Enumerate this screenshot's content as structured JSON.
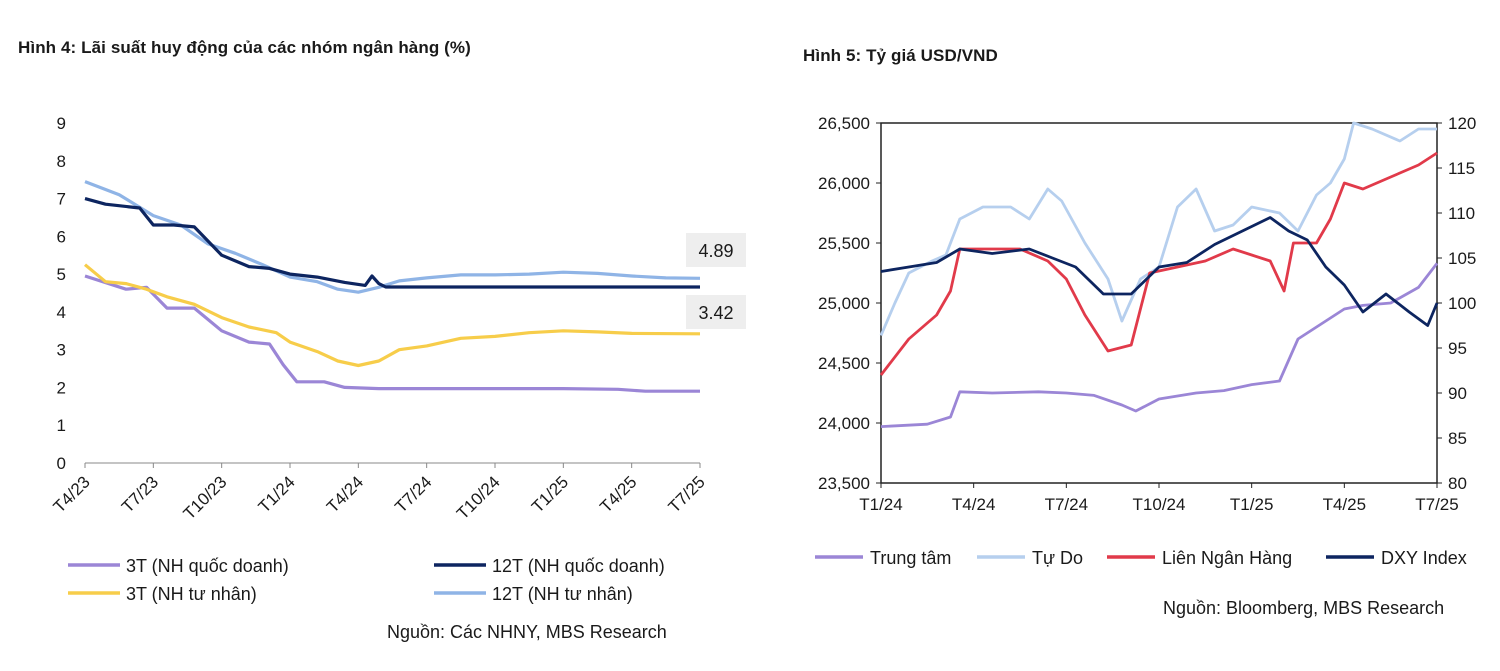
{
  "chart_data": [
    {
      "type": "line",
      "title": "Hình 4: Lãi suất huy động của các nhóm ngân hàng (%)",
      "source": "Nguồn: Các NHNY, MBS Research",
      "xlabel": "",
      "ylabel": "",
      "ylim": [
        0,
        9
      ],
      "yticks": [
        "0",
        "1",
        "2",
        "3",
        "4",
        "5",
        "6",
        "7",
        "8",
        "9"
      ],
      "categories": [
        "T4/23",
        "T7/23",
        "T10/23",
        "T1/24",
        "T4/24",
        "T7/24",
        "T10/24",
        "T1/25",
        "T4/25",
        "T7/25"
      ],
      "end_labels": [
        "4.89",
        "3.42"
      ],
      "series": [
        {
          "name": "3T (NH quốc doanh)",
          "color": "#9b86d6",
          "points": [
            [
              0,
              4.95
            ],
            [
              0.6,
              4.6
            ],
            [
              0.9,
              4.65
            ],
            [
              1.2,
              4.1
            ],
            [
              1.6,
              4.1
            ],
            [
              2.0,
              3.5
            ],
            [
              2.4,
              3.2
            ],
            [
              2.7,
              3.15
            ],
            [
              2.9,
              2.6
            ],
            [
              3.1,
              2.15
            ],
            [
              3.5,
              2.15
            ],
            [
              3.8,
              2.0
            ],
            [
              4.3,
              1.97
            ],
            [
              5.0,
              1.97
            ],
            [
              6,
              1.97
            ],
            [
              7,
              1.97
            ],
            [
              7.8,
              1.95
            ],
            [
              8.2,
              1.9
            ],
            [
              9,
              1.9
            ]
          ]
        },
        {
          "name": "12T (NH quốc doanh)",
          "color": "#0d2560",
          "points": [
            [
              0,
              7.0
            ],
            [
              0.3,
              6.85
            ],
            [
              0.8,
              6.75
            ],
            [
              1.0,
              6.3
            ],
            [
              1.3,
              6.3
            ],
            [
              1.6,
              6.25
            ],
            [
              2.0,
              5.5
            ],
            [
              2.4,
              5.2
            ],
            [
              2.7,
              5.15
            ],
            [
              3.0,
              5.0
            ],
            [
              3.4,
              4.92
            ],
            [
              3.8,
              4.78
            ],
            [
              4.1,
              4.7
            ],
            [
              4.2,
              4.95
            ],
            [
              4.3,
              4.75
            ],
            [
              4.4,
              4.66
            ],
            [
              5.0,
              4.66
            ],
            [
              6,
              4.66
            ],
            [
              7,
              4.66
            ],
            [
              8,
              4.66
            ],
            [
              9,
              4.66
            ]
          ]
        },
        {
          "name": "3T (NH tư nhân)",
          "color": "#f7cd4a",
          "points": [
            [
              0,
              5.25
            ],
            [
              0.3,
              4.8
            ],
            [
              0.6,
              4.75
            ],
            [
              0.9,
              4.6
            ],
            [
              1.2,
              4.4
            ],
            [
              1.6,
              4.2
            ],
            [
              2.0,
              3.85
            ],
            [
              2.4,
              3.6
            ],
            [
              2.8,
              3.45
            ],
            [
              3.0,
              3.2
            ],
            [
              3.4,
              2.95
            ],
            [
              3.7,
              2.7
            ],
            [
              4.0,
              2.58
            ],
            [
              4.3,
              2.7
            ],
            [
              4.6,
              3.0
            ],
            [
              5.0,
              3.1
            ],
            [
              5.5,
              3.3
            ],
            [
              6.0,
              3.35
            ],
            [
              6.5,
              3.45
            ],
            [
              7.0,
              3.5
            ],
            [
              7.5,
              3.47
            ],
            [
              8.0,
              3.43
            ],
            [
              9,
              3.42
            ]
          ]
        },
        {
          "name": "12T (NH tư nhân)",
          "color": "#8fb4e6",
          "points": [
            [
              0,
              7.45
            ],
            [
              0.5,
              7.1
            ],
            [
              1.0,
              6.55
            ],
            [
              1.4,
              6.3
            ],
            [
              1.8,
              5.8
            ],
            [
              2.2,
              5.55
            ],
            [
              2.6,
              5.25
            ],
            [
              3.0,
              4.92
            ],
            [
              3.4,
              4.8
            ],
            [
              3.7,
              4.6
            ],
            [
              4.0,
              4.52
            ],
            [
              4.3,
              4.65
            ],
            [
              4.6,
              4.82
            ],
            [
              5.0,
              4.9
            ],
            [
              5.5,
              4.98
            ],
            [
              6.0,
              4.98
            ],
            [
              6.5,
              5.0
            ],
            [
              7.0,
              5.05
            ],
            [
              7.5,
              5.02
            ],
            [
              8.0,
              4.95
            ],
            [
              8.5,
              4.9
            ],
            [
              9,
              4.89
            ]
          ]
        }
      ]
    },
    {
      "type": "line",
      "title": "Hình 5: Tỷ giá USD/VND",
      "source": "Nguồn: Bloomberg, MBS Research",
      "xlabel": "",
      "ylabel": "",
      "ylim": [
        23500,
        26500
      ],
      "yticks": [
        "23,500",
        "24,000",
        "24,500",
        "25,000",
        "25,500",
        "26,000",
        "26,500"
      ],
      "y2lim": [
        80,
        120
      ],
      "y2ticks": [
        "80",
        "85",
        "90",
        "95",
        "100",
        "105",
        "110",
        "115",
        "120"
      ],
      "categories": [
        "T1/24",
        "T4/24",
        "T7/24",
        "T10/24",
        "T1/25",
        "T4/25",
        "T7/25"
      ],
      "series": [
        {
          "name": "Trung tâm",
          "color": "#9b86d6",
          "axis": "left",
          "points": [
            [
              0,
              23970
            ],
            [
              0.5,
              23990
            ],
            [
              0.75,
              24050
            ],
            [
              0.85,
              24260
            ],
            [
              1.2,
              24250
            ],
            [
              1.7,
              24260
            ],
            [
              2.0,
              24250
            ],
            [
              2.3,
              24230
            ],
            [
              2.6,
              24150
            ],
            [
              2.75,
              24100
            ],
            [
              3.0,
              24200
            ],
            [
              3.4,
              24250
            ],
            [
              3.7,
              24270
            ],
            [
              4.0,
              24320
            ],
            [
              4.3,
              24350
            ],
            [
              4.5,
              24700
            ],
            [
              4.8,
              24850
            ],
            [
              5.0,
              24950
            ],
            [
              5.2,
              24980
            ],
            [
              5.5,
              25000
            ],
            [
              5.8,
              25130
            ],
            [
              6.0,
              25330
            ]
          ]
        },
        {
          "name": "Tự Do",
          "color": "#b6cfee",
          "axis": "left",
          "points": [
            [
              0,
              24730
            ],
            [
              0.15,
              25000
            ],
            [
              0.3,
              25250
            ],
            [
              0.55,
              25350
            ],
            [
              0.7,
              25400
            ],
            [
              0.85,
              25700
            ],
            [
              1.1,
              25800
            ],
            [
              1.4,
              25800
            ],
            [
              1.6,
              25700
            ],
            [
              1.8,
              25950
            ],
            [
              1.95,
              25850
            ],
            [
              2.2,
              25500
            ],
            [
              2.45,
              25200
            ],
            [
              2.6,
              24850
            ],
            [
              2.8,
              25200
            ],
            [
              3.0,
              25300
            ],
            [
              3.2,
              25800
            ],
            [
              3.4,
              25950
            ],
            [
              3.6,
              25600
            ],
            [
              3.8,
              25650
            ],
            [
              4.0,
              25800
            ],
            [
              4.3,
              25750
            ],
            [
              4.5,
              25600
            ],
            [
              4.7,
              25900
            ],
            [
              4.85,
              26000
            ],
            [
              5.0,
              26200
            ],
            [
              5.1,
              26500
            ],
            [
              5.3,
              26450
            ],
            [
              5.6,
              26350
            ],
            [
              5.8,
              26450
            ],
            [
              6.0,
              26450
            ]
          ]
        },
        {
          "name": "Liên Ngân Hàng",
          "color": "#e13a4a",
          "axis": "left",
          "points": [
            [
              0,
              24400
            ],
            [
              0.3,
              24700
            ],
            [
              0.6,
              24900
            ],
            [
              0.75,
              25100
            ],
            [
              0.85,
              25450
            ],
            [
              1.2,
              25450
            ],
            [
              1.5,
              25450
            ],
            [
              1.8,
              25350
            ],
            [
              2.0,
              25200
            ],
            [
              2.2,
              24900
            ],
            [
              2.45,
              24600
            ],
            [
              2.7,
              24650
            ],
            [
              2.9,
              25250
            ],
            [
              3.2,
              25300
            ],
            [
              3.5,
              25350
            ],
            [
              3.8,
              25450
            ],
            [
              4.0,
              25400
            ],
            [
              4.2,
              25350
            ],
            [
              4.35,
              25100
            ],
            [
              4.45,
              25500
            ],
            [
              4.7,
              25500
            ],
            [
              4.85,
              25700
            ],
            [
              5.0,
              26000
            ],
            [
              5.2,
              25950
            ],
            [
              5.5,
              26050
            ],
            [
              5.8,
              26150
            ],
            [
              6.0,
              26250
            ]
          ]
        },
        {
          "name": "DXY Index",
          "color": "#0d2560",
          "axis": "right",
          "points": [
            [
              0,
              103.5
            ],
            [
              0.3,
              104
            ],
            [
              0.6,
              104.5
            ],
            [
              0.85,
              106
            ],
            [
              1.2,
              105.5
            ],
            [
              1.6,
              106
            ],
            [
              1.85,
              105
            ],
            [
              2.1,
              104
            ],
            [
              2.4,
              101
            ],
            [
              2.7,
              101
            ],
            [
              3.0,
              104
            ],
            [
              3.3,
              104.5
            ],
            [
              3.6,
              106.5
            ],
            [
              3.9,
              108
            ],
            [
              4.2,
              109.5
            ],
            [
              4.4,
              108
            ],
            [
              4.6,
              107
            ],
            [
              4.8,
              104
            ],
            [
              5.0,
              102
            ],
            [
              5.2,
              99
            ],
            [
              5.45,
              101
            ],
            [
              5.7,
              99
            ],
            [
              5.9,
              97.5
            ],
            [
              6.0,
              100
            ]
          ]
        }
      ]
    }
  ]
}
